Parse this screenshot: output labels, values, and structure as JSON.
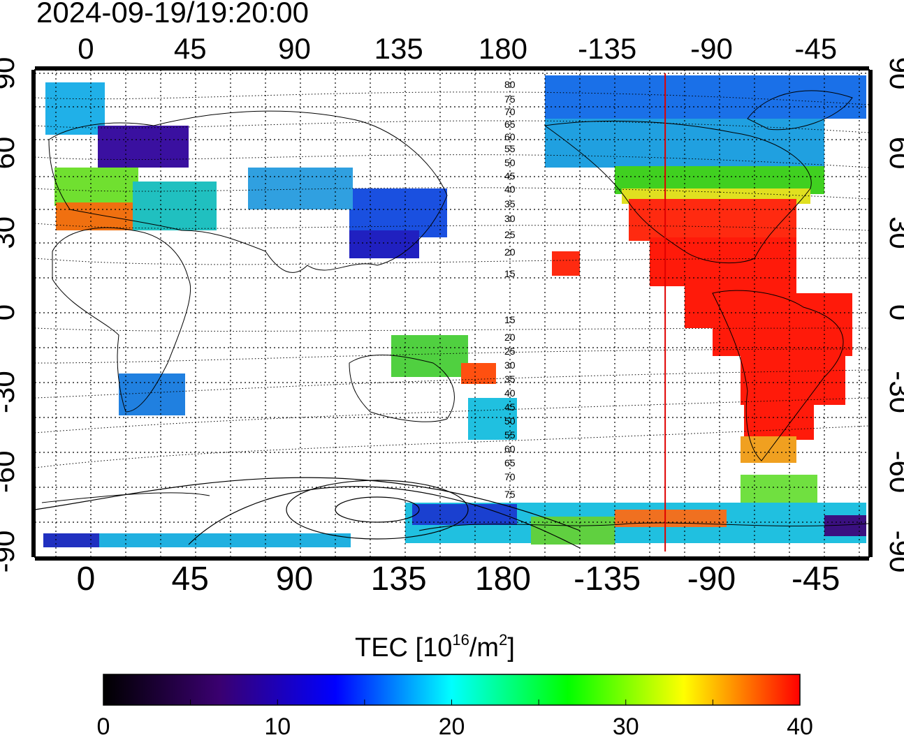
{
  "timestamp": "2024-09-19/19:20:00",
  "map": {
    "top_lon_ticks": [
      "0",
      "45",
      "90",
      "135",
      "180",
      "-135",
      "-90",
      "-45"
    ],
    "bottom_lon_ticks": [
      "0",
      "45",
      "90",
      "135",
      "180",
      "-135",
      "-90",
      "-45"
    ],
    "left_lat_ticks": [
      "90",
      "60",
      "30",
      "0",
      "-30",
      "-60",
      "-90"
    ],
    "right_lat_ticks": [
      "90",
      "60",
      "30",
      "0",
      "-30",
      "-60",
      "-90"
    ],
    "lon_ticks_deg": [
      0,
      45,
      90,
      135,
      180,
      225,
      270,
      315
    ],
    "lat_ticks_deg": [
      90,
      60,
      30,
      0,
      -30,
      -60,
      -90
    ],
    "lon_range_deg": [
      -22,
      338
    ],
    "lat_range_deg": [
      -90,
      90
    ],
    "contour_labels_north": [
      "80",
      "75",
      "70",
      "65",
      "60",
      "55",
      "50",
      "45",
      "40",
      "35",
      "30",
      "25",
      "20",
      "15"
    ],
    "contour_labels_south": [
      "15",
      "20",
      "25",
      "30",
      "35",
      "40",
      "45",
      "50",
      "55",
      "60",
      "65",
      "70",
      "75"
    ],
    "terminator_line_lon_deg": -110,
    "terminator_color": "#e00000",
    "grid": "dotted"
  },
  "colorbar": {
    "title_prefix": "TEC  [10",
    "title_sup1": "16",
    "title_mid": "/m",
    "title_sup2": "2",
    "title_suffix": "]",
    "min": 0,
    "max": 40,
    "tick_labels": [
      "0",
      "10",
      "20",
      "30",
      "40"
    ],
    "colors": [
      "#000000",
      "#3a0070",
      "#0000ff",
      "#00ffff",
      "#00ff00",
      "#ffff00",
      "#ff0000"
    ]
  }
}
